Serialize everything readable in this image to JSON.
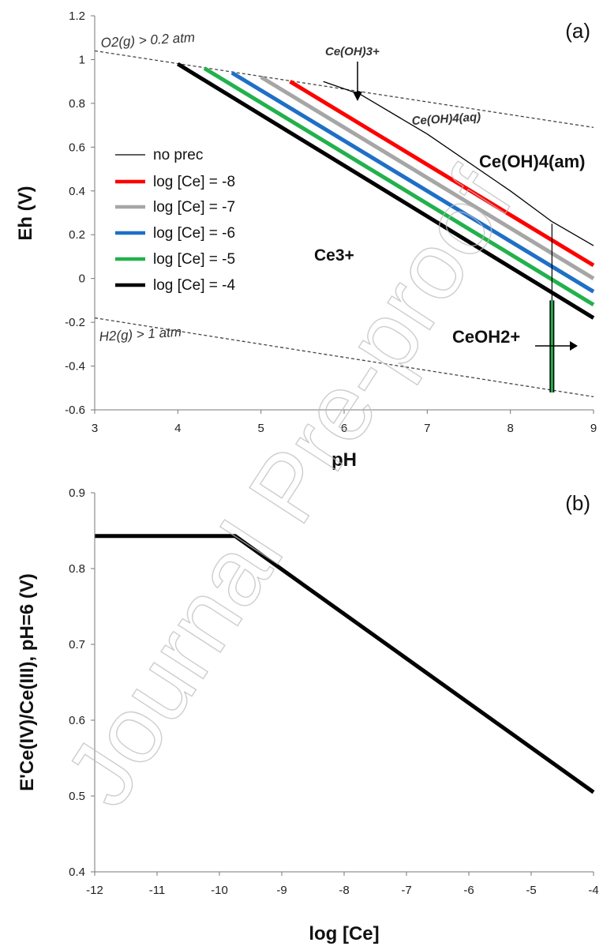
{
  "chart_data": [
    {
      "type": "line",
      "panel_label": "(a)",
      "xlabel": "pH",
      "ylabel": "Eh (V)",
      "xlim": [
        3,
        9
      ],
      "ylim": [
        -0.6,
        1.2
      ],
      "x_ticks": [
        "3",
        "4",
        "5",
        "6",
        "7",
        "8",
        "9"
      ],
      "y_ticks": [
        "-0.6",
        "-0.4",
        "-0.2",
        "0",
        "0.2",
        "0.4",
        "0.6",
        "0.8",
        "1",
        "1.2"
      ],
      "grid": false,
      "legend_position": "left-middle",
      "series": [
        {
          "name": "no prec",
          "color": "#000000",
          "width": "thin",
          "points": [
            [
              5.75,
              0.9
            ],
            [
              6.2,
              0.84
            ],
            [
              7.0,
              0.66
            ],
            [
              8.0,
              0.4
            ],
            [
              8.5,
              0.26
            ],
            [
              9.0,
              0.15
            ]
          ]
        },
        {
          "name": "log [Ce] = -8",
          "color": "#ff0000",
          "points": [
            [
              5.35,
              0.9
            ],
            [
              9.0,
              0.06
            ]
          ]
        },
        {
          "name": "log [Ce] = -7",
          "color": "#a6a6a6",
          "points": [
            [
              5.0,
              0.92
            ],
            [
              9.0,
              0.0
            ]
          ]
        },
        {
          "name": "log [Ce] = -6",
          "color": "#1f6fc6",
          "points": [
            [
              4.65,
              0.94
            ],
            [
              9.0,
              -0.06
            ]
          ]
        },
        {
          "name": "log [Ce] = -5",
          "color": "#22b14c",
          "points": [
            [
              4.32,
              0.96
            ],
            [
              9.0,
              -0.12
            ]
          ]
        },
        {
          "name": "log [Ce] = -4",
          "color": "#000000",
          "points": [
            [
              4.0,
              0.98
            ],
            [
              9.0,
              -0.18
            ]
          ]
        }
      ],
      "boundaries": {
        "o2_line": [
          [
            3.0,
            1.04
          ],
          [
            9.0,
            0.69
          ]
        ],
        "h2_line": [
          [
            3.0,
            -0.18
          ],
          [
            9.0,
            -0.54
          ]
        ],
        "vertical_pH": 8.5,
        "vertical_range": [
          -0.52,
          0.25
        ]
      },
      "annotations": {
        "o2": "O2(g) > 0.2 atm",
        "h2": "H2(g) > 1 atm",
        "ceoh3": "Ce(OH)3+",
        "ceoh4aq": "Ce(OH)4(aq)",
        "ceoh4am": "Ce(OH)4(am)",
        "ce3": "Ce3+",
        "ceoh2": "CeOH2+"
      }
    },
    {
      "type": "line",
      "panel_label": "(b)",
      "xlabel": "log [Ce]",
      "ylabel": "E'Ce(IV)/Ce(III), pH=6 (V)",
      "xlim": [
        -12,
        -4
      ],
      "ylim": [
        0.4,
        0.9
      ],
      "x_ticks": [
        "-12",
        "-11",
        "-10",
        "-9",
        "-8",
        "-7",
        "-6",
        "-5",
        "-4"
      ],
      "y_ticks": [
        "0.4",
        "0.5",
        "0.6",
        "0.7",
        "0.8",
        "0.9"
      ],
      "grid": false,
      "series": [
        {
          "name": "",
          "color": "#000000",
          "points": [
            [
              -12.0,
              0.843
            ],
            [
              -9.75,
              0.843
            ],
            [
              -4.0,
              0.505
            ]
          ]
        }
      ]
    }
  ],
  "watermark": "Journal Pre-proof"
}
